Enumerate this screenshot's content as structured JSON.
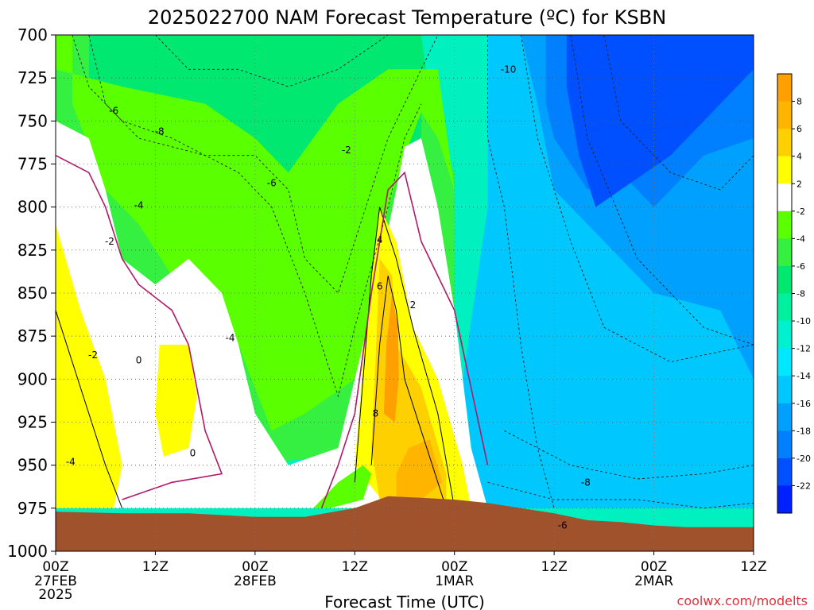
{
  "chart_data": {
    "type": "heatmap",
    "title": "2025022700 NAM Forecast Temperature (ºC) for KSBN",
    "xlabel": "Forecast Time (UTC)",
    "ylabel": "",
    "watermark": "coolwx.com/modelts",
    "y_axis": {
      "ticks": [
        700,
        725,
        750,
        775,
        800,
        825,
        850,
        875,
        900,
        925,
        950,
        975,
        1000
      ],
      "range": [
        700,
        1000
      ],
      "inverted": true
    },
    "x_axis": {
      "range_hours": [
        0,
        84
      ],
      "ticks": [
        {
          "hour": 0,
          "label": "00Z",
          "sub": "27FEB",
          "sub2": "2025"
        },
        {
          "hour": 12,
          "label": "12Z",
          "sub": "",
          "sub2": ""
        },
        {
          "hour": 24,
          "label": "00Z",
          "sub": "28FEB",
          "sub2": ""
        },
        {
          "hour": 36,
          "label": "12Z",
          "sub": "",
          "sub2": ""
        },
        {
          "hour": 48,
          "label": "00Z",
          "sub": "1MAR",
          "sub2": ""
        },
        {
          "hour": 60,
          "label": "12Z",
          "sub": "",
          "sub2": ""
        },
        {
          "hour": 72,
          "label": "00Z",
          "sub": "2MAR",
          "sub2": ""
        },
        {
          "hour": 84,
          "label": "12Z",
          "sub": "",
          "sub2": ""
        }
      ]
    },
    "grid": true,
    "colorbar": {
      "position": "right",
      "levels": [
        "8",
        "6",
        "4",
        "2",
        "-2",
        "-4",
        "-6",
        "-8",
        "-10",
        "-12",
        "-14",
        "-16",
        "-18",
        "-20",
        "-22"
      ],
      "colors": [
        "#ff9f00",
        "#ffb400",
        "#ffd000",
        "#ffff00",
        "#ffffff",
        "#5aff00",
        "#35f040",
        "#00e870",
        "#00f0a0",
        "#00f0d0",
        "#00e8ff",
        "#00c8ff",
        "#00a0ff",
        "#0080ff",
        "#0050ff",
        "#0020ff"
      ]
    },
    "contour_labels": [
      {
        "text": "-10",
        "hour": 54.5,
        "p": 720
      },
      {
        "text": "-6",
        "hour": 7,
        "p": 744
      },
      {
        "text": "-8",
        "hour": 12.5,
        "p": 756
      },
      {
        "text": "-2",
        "hour": 35,
        "p": 767
      },
      {
        "text": "-6",
        "hour": 26,
        "p": 786
      },
      {
        "text": "-4",
        "hour": 10,
        "p": 799
      },
      {
        "text": "-2",
        "hour": 6.5,
        "p": 820
      },
      {
        "text": "4",
        "hour": 39,
        "p": 819
      },
      {
        "text": "6",
        "hour": 39,
        "p": 846
      },
      {
        "text": "2",
        "hour": 43,
        "p": 857
      },
      {
        "text": "-4",
        "hour": 21,
        "p": 876
      },
      {
        "text": "-2",
        "hour": 4.5,
        "p": 886
      },
      {
        "text": "0",
        "hour": 10,
        "p": 889
      },
      {
        "text": "8",
        "hour": 38.5,
        "p": 920
      },
      {
        "text": "0",
        "hour": 16.5,
        "p": 943
      },
      {
        "text": "-4",
        "hour": 1.8,
        "p": 948
      },
      {
        "text": "-8",
        "hour": 63.8,
        "p": 960
      },
      {
        "text": "-6",
        "hour": 61,
        "p": 985
      }
    ]
  }
}
